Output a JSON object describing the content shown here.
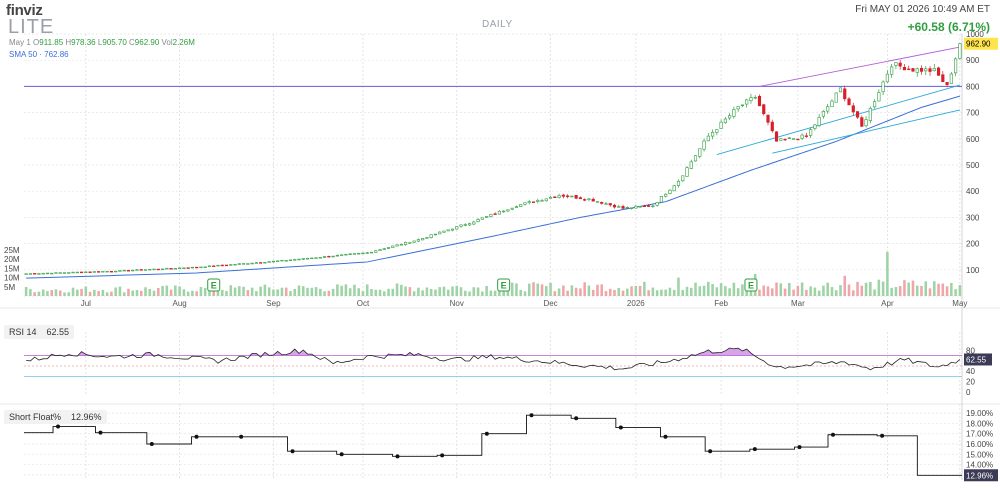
{
  "header": {
    "logo": "finviz",
    "ticker": "LITE",
    "timeframe": "DAILY",
    "datetime": "Fri MAY 01 2026 10:49 AM ET",
    "change": "+60.58 (6.71%)",
    "ohlc": {
      "date": "May 1",
      "open": "911.85",
      "high": "978.36",
      "low": "905.70",
      "close": "962.90",
      "volume": "2.26M"
    },
    "sma_label": "SMA 50",
    "sma_value": "762.86"
  },
  "colors": {
    "up": "#2e9e3e",
    "down": "#d6202a",
    "sma": "#3a6fd8",
    "trend": "#29a7d8",
    "channel": "#b45cd6",
    "hline": "#6a5bd6",
    "rsi": "#222222",
    "rsi_fill": "#c77de0",
    "price_tag": "#ffe44d"
  },
  "chart_data": [
    {
      "type": "candlestick",
      "name": "price",
      "x_axis_labels": [
        "Jul",
        "Aug",
        "Sep",
        "Oct",
        "Nov",
        "Dec",
        "2026",
        "Feb",
        "Mar",
        "Apr",
        "May"
      ],
      "y_ticks": [
        0,
        100,
        200,
        300,
        400,
        500,
        600,
        700,
        800,
        900,
        1000
      ],
      "ylim": [
        0,
        1000
      ],
      "last_price": "962.90",
      "horizontal_line": 800,
      "earnings_markers": [
        "Aug",
        "Nov",
        "Feb"
      ],
      "earnings_label": "E",
      "anchors": [
        {
          "i": 0,
          "c": 85
        },
        {
          "i": 20,
          "c": 95
        },
        {
          "i": 40,
          "c": 110
        },
        {
          "i": 60,
          "c": 135
        },
        {
          "i": 80,
          "c": 165
        },
        {
          "i": 92,
          "c": 215
        },
        {
          "i": 105,
          "c": 285
        },
        {
          "i": 115,
          "c": 345
        },
        {
          "i": 125,
          "c": 385
        },
        {
          "i": 132,
          "c": 370
        },
        {
          "i": 140,
          "c": 335
        },
        {
          "i": 147,
          "c": 345
        },
        {
          "i": 153,
          "c": 440
        },
        {
          "i": 160,
          "c": 610
        },
        {
          "i": 167,
          "c": 720
        },
        {
          "i": 171,
          "c": 760
        },
        {
          "i": 176,
          "c": 590
        },
        {
          "i": 183,
          "c": 610
        },
        {
          "i": 187,
          "c": 700
        },
        {
          "i": 191,
          "c": 790
        },
        {
          "i": 196,
          "c": 645
        },
        {
          "i": 203,
          "c": 885
        },
        {
          "i": 208,
          "c": 865
        },
        {
          "i": 213,
          "c": 860
        },
        {
          "i": 216,
          "c": 800
        },
        {
          "i": 219,
          "c": 962.9
        }
      ],
      "sma50": [
        {
          "i": 0,
          "v": 68
        },
        {
          "i": 40,
          "v": 88
        },
        {
          "i": 80,
          "v": 130
        },
        {
          "i": 110,
          "v": 230
        },
        {
          "i": 130,
          "v": 300
        },
        {
          "i": 150,
          "v": 360
        },
        {
          "i": 170,
          "v": 480
        },
        {
          "i": 190,
          "v": 590
        },
        {
          "i": 210,
          "v": 720
        },
        {
          "i": 219,
          "v": 762.86
        }
      ],
      "trendlines": [
        {
          "from": {
            "i": 162,
            "v": 540
          },
          "to": {
            "i": 219,
            "v": 805
          }
        },
        {
          "from": {
            "i": 175,
            "v": 545
          },
          "to": {
            "i": 219,
            "v": 710
          }
        },
        {
          "from": {
            "i": 172,
            "v": 800
          },
          "to": {
            "i": 219,
            "v": 950
          }
        }
      ],
      "volume": {
        "y_ticks": [
          "5M",
          "10M",
          "15M",
          "20M",
          "25M"
        ],
        "max": 25,
        "spikes": [
          {
            "i": 202,
            "v": 24
          },
          {
            "i": 153,
            "v": 10
          },
          {
            "i": 171,
            "v": 12
          },
          {
            "i": 192,
            "v": 11
          }
        ],
        "base": 3.5
      }
    },
    {
      "type": "line",
      "name": "RSI 14",
      "title": "RSI 14",
      "value": "62.55",
      "y_ticks": [
        0,
        20,
        40,
        60,
        80
      ],
      "ylim": [
        0,
        100
      ],
      "overbought": 70,
      "oversold": 30,
      "midline": 50,
      "anchors": [
        {
          "i": 0,
          "v": 60
        },
        {
          "i": 10,
          "v": 75
        },
        {
          "i": 20,
          "v": 68
        },
        {
          "i": 30,
          "v": 72
        },
        {
          "i": 45,
          "v": 60
        },
        {
          "i": 55,
          "v": 72
        },
        {
          "i": 65,
          "v": 80
        },
        {
          "i": 72,
          "v": 55
        },
        {
          "i": 80,
          "v": 68
        },
        {
          "i": 92,
          "v": 72
        },
        {
          "i": 100,
          "v": 62
        },
        {
          "i": 110,
          "v": 68
        },
        {
          "i": 120,
          "v": 60
        },
        {
          "i": 130,
          "v": 52
        },
        {
          "i": 140,
          "v": 45
        },
        {
          "i": 150,
          "v": 58
        },
        {
          "i": 160,
          "v": 78
        },
        {
          "i": 168,
          "v": 82
        },
        {
          "i": 176,
          "v": 48
        },
        {
          "i": 184,
          "v": 52
        },
        {
          "i": 192,
          "v": 58
        },
        {
          "i": 198,
          "v": 45
        },
        {
          "i": 206,
          "v": 62
        },
        {
          "i": 214,
          "v": 48
        },
        {
          "i": 219,
          "v": 62.55
        }
      ]
    },
    {
      "type": "step",
      "name": "Short Float%",
      "title": "Short Float%",
      "value": "12.96%",
      "y_ticks": [
        "13.00%",
        "14.00%",
        "15.00%",
        "16.00%",
        "17.00%",
        "18.00%",
        "19.00%"
      ],
      "ylim": [
        12.5,
        19.5
      ],
      "points": [
        {
          "i": 0,
          "v": 17.1
        },
        {
          "i": 13,
          "v": 17.7
        },
        {
          "i": 32,
          "v": 17.1
        },
        {
          "i": 55,
          "v": 16.0
        },
        {
          "i": 75,
          "v": 16.7
        },
        {
          "i": 95,
          "v": 16.7
        },
        {
          "i": 118,
          "v": 15.3
        },
        {
          "i": 140,
          "v": 15.0
        },
        {
          "i": 165,
          "v": 14.8
        },
        {
          "i": 185,
          "v": 14.9
        },
        {
          "i": 205,
          "v": 17.0
        },
        {
          "i": 225,
          "v": 18.8
        },
        {
          "i": 245,
          "v": 18.5
        },
        {
          "i": 265,
          "v": 17.6
        },
        {
          "i": 285,
          "v": 16.7
        },
        {
          "i": 305,
          "v": 15.3
        },
        {
          "i": 325,
          "v": 15.5
        },
        {
          "i": 345,
          "v": 15.7
        },
        {
          "i": 360,
          "v": 16.9
        },
        {
          "i": 382,
          "v": 16.8
        },
        {
          "i": 400,
          "v": 12.96
        }
      ],
      "x_max": 420
    }
  ]
}
